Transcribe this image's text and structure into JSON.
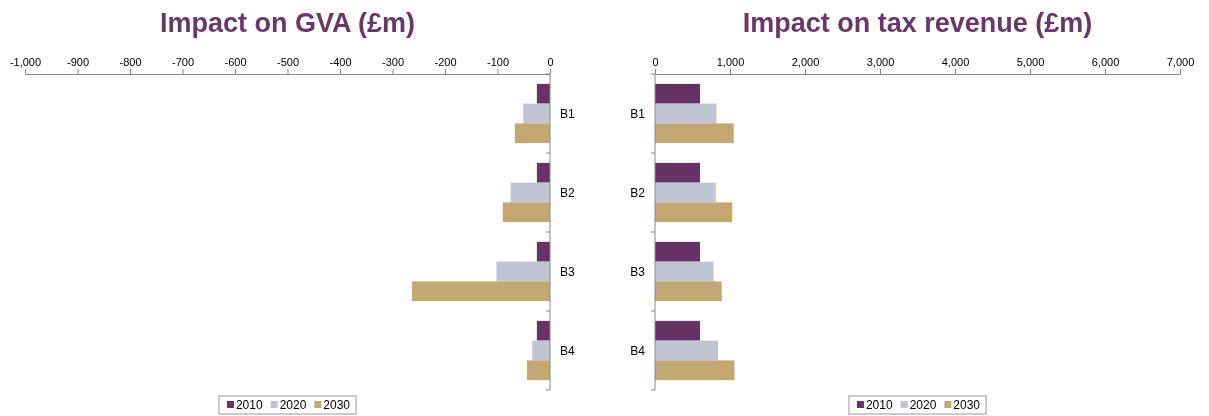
{
  "chart_data": [
    {
      "type": "bar",
      "orientation": "horizontal",
      "title": "Impact on GVA (£m)",
      "categories": [
        "B1",
        "B2",
        "B3",
        "B4"
      ],
      "series": [
        {
          "name": "2010",
          "color": "#673366",
          "values": [
            -25,
            -25,
            -25,
            -25
          ]
        },
        {
          "name": "2020",
          "color": "#c0c5d1",
          "values": [
            -51,
            -75,
            -102,
            -34
          ]
        },
        {
          "name": "2030",
          "color": "#c4a874",
          "values": [
            -67,
            -90,
            -263,
            -44
          ]
        }
      ],
      "xlim": [
        -1000,
        0
      ],
      "xticks": [
        {
          "value": -1000,
          "label": "-1,000"
        },
        -900,
        -800,
        -700,
        -600,
        -500,
        -400,
        -300,
        -200,
        -100,
        0
      ],
      "grid": false,
      "legend": "bottom"
    },
    {
      "type": "bar",
      "orientation": "horizontal",
      "title": "Impact on tax revenue (£m)",
      "categories": [
        "B1",
        "B2",
        "B3",
        "B4"
      ],
      "series": [
        {
          "name": "2010",
          "color": "#673366",
          "values": [
            600,
            600,
            600,
            600
          ]
        },
        {
          "name": "2020",
          "color": "#c0c5d1",
          "values": [
            820,
            810,
            780,
            840
          ]
        },
        {
          "name": "2030",
          "color": "#c4a874",
          "values": [
            1050,
            1030,
            890,
            1060
          ]
        }
      ],
      "xlim": [
        0,
        7000
      ],
      "xticks": [
        0,
        {
          "value": 1000,
          "label": "1,000"
        },
        {
          "value": 2000,
          "label": "2,000"
        },
        {
          "value": 3000,
          "label": "3,000"
        },
        {
          "value": 4000,
          "label": "4,000"
        },
        {
          "value": 5000,
          "label": "5,000"
        },
        {
          "value": 6000,
          "label": "6,000"
        },
        {
          "value": 7000,
          "label": "7,000"
        }
      ],
      "grid": false,
      "legend": "bottom"
    }
  ]
}
